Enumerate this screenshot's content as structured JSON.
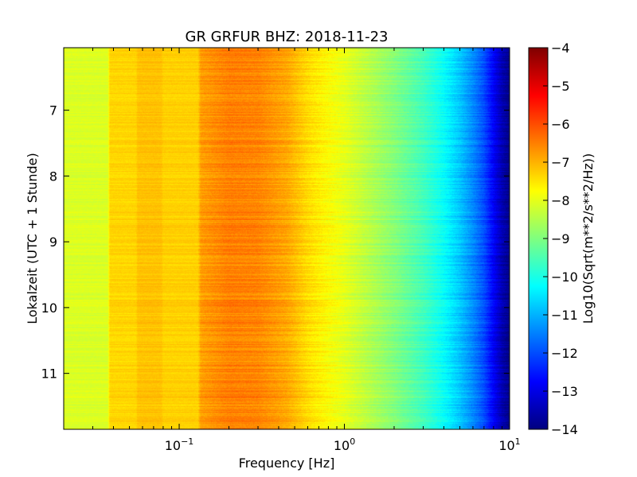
{
  "chart_data": {
    "type": "heatmap",
    "title": "GR GRFUR BHZ: 2018-11-23",
    "xlabel": "Frequency [Hz]",
    "ylabel": "Lokalzeit (UTC + 1 Stunde)",
    "x_scale": "log",
    "xlim": [
      0.02,
      10
    ],
    "x_ticks": [
      {
        "value": 0.1,
        "base": "10",
        "exp": "−1"
      },
      {
        "value": 1,
        "base": "10",
        "exp": "0"
      },
      {
        "value": 10,
        "base": "10",
        "exp": "1"
      }
    ],
    "ylim": [
      6.05,
      11.85
    ],
    "y_inverted": true,
    "y_ticks": [
      7,
      8,
      9,
      10,
      11
    ],
    "colorbar": {
      "label": "Log10(Sqrt(m**2/s**2/Hz))",
      "range": [
        -14,
        -4
      ],
      "ticks": [
        -4,
        -5,
        -6,
        -7,
        -8,
        -9,
        -10,
        -11,
        -12,
        -13,
        -14
      ],
      "colormap": "jet"
    },
    "spectrum_profile": {
      "frequency_hz": [
        0.02,
        0.037,
        0.038,
        0.055,
        0.056,
        0.078,
        0.08,
        0.13,
        0.135,
        0.2,
        0.3,
        0.45,
        0.6,
        0.8,
        1.0,
        1.5,
        2.0,
        3.0,
        4.0,
        5.0,
        6.0,
        7.0,
        8.0,
        9.0,
        10.0
      ],
      "log10_amplitude": [
        -8.1,
        -8.1,
        -7.35,
        -7.35,
        -7.15,
        -7.15,
        -7.3,
        -7.3,
        -6.8,
        -6.5,
        -6.55,
        -6.9,
        -7.4,
        -7.75,
        -8.0,
        -8.55,
        -8.95,
        -9.6,
        -10.2,
        -10.8,
        -11.4,
        -12.0,
        -12.8,
        -13.5,
        -13.9
      ]
    },
    "colors": {
      "jet": [
        "#00007f",
        "#0000ff",
        "#007fff",
        "#00ffff",
        "#7fff7f",
        "#ffff00",
        "#ff7f00",
        "#ff0000",
        "#7f0000"
      ]
    }
  }
}
